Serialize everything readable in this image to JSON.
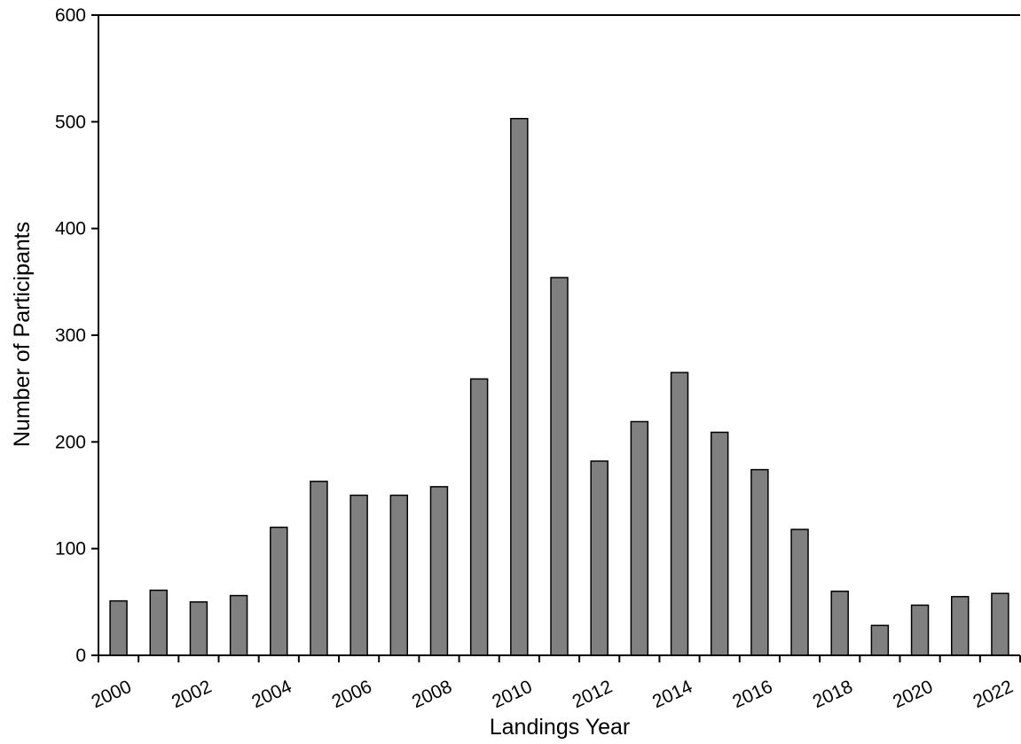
{
  "chart_data": {
    "type": "bar",
    "title": "",
    "xlabel": "Landings Year",
    "ylabel": "Number of Participants",
    "ylim": [
      0,
      600
    ],
    "yticks": [
      0,
      100,
      200,
      300,
      400,
      500,
      600
    ],
    "categories": [
      "2000",
      "2001",
      "2002",
      "2003",
      "2004",
      "2005",
      "2006",
      "2007",
      "2008",
      "2009",
      "2010",
      "2011",
      "2012",
      "2013",
      "2014",
      "2015",
      "2016",
      "2017",
      "2018",
      "2019",
      "2020",
      "2021",
      "2022"
    ],
    "xtick_labels": [
      "2000",
      "2002",
      "2004",
      "2006",
      "2008",
      "2010",
      "2012",
      "2014",
      "2016",
      "2018",
      "2020",
      "2022"
    ],
    "values": [
      51,
      61,
      50,
      56,
      120,
      163,
      150,
      150,
      158,
      259,
      503,
      354,
      182,
      219,
      265,
      209,
      174,
      118,
      60,
      28,
      47,
      55,
      58
    ],
    "bar_color": "#808080",
    "grid": false,
    "legend": "none"
  }
}
